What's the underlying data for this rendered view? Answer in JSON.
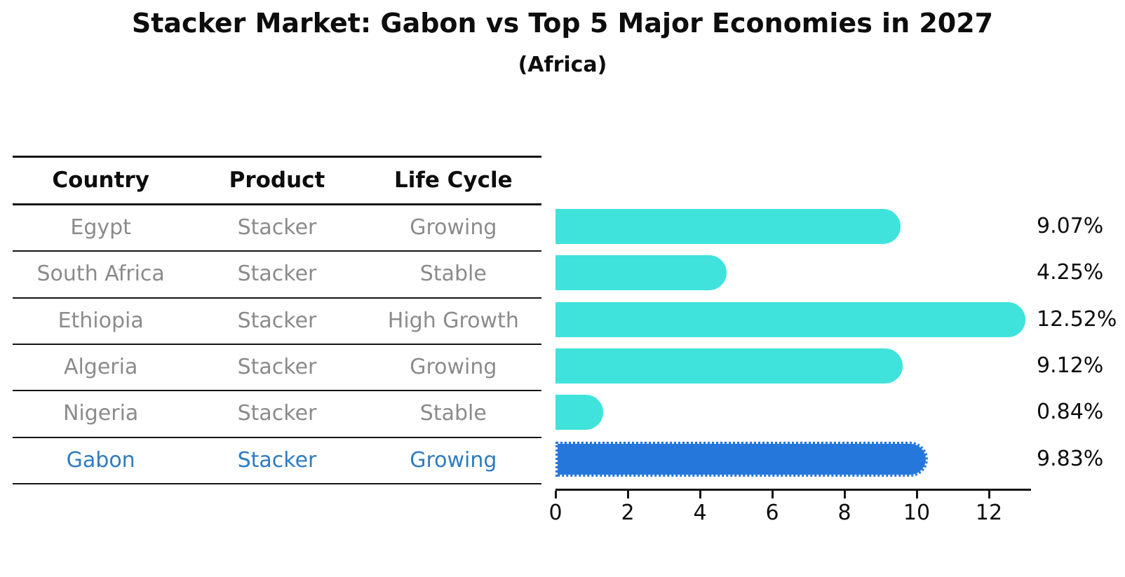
{
  "header": {
    "title": "Stacker Market: Gabon vs Top 5 Major Economies in 2027",
    "subtitle": "(Africa)"
  },
  "table": {
    "columns": [
      "Country",
      "Product",
      "Life Cycle"
    ],
    "rows": [
      {
        "country": "Egypt",
        "product": "Stacker",
        "life_cycle": "Growing",
        "highlight": false
      },
      {
        "country": "South Africa",
        "product": "Stacker",
        "life_cycle": "Stable",
        "highlight": false
      },
      {
        "country": "Ethiopia",
        "product": "Stacker",
        "life_cycle": "High Growth",
        "highlight": false
      },
      {
        "country": "Algeria",
        "product": "Stacker",
        "life_cycle": "Growing",
        "highlight": false
      },
      {
        "country": "Nigeria",
        "product": "Stacker",
        "life_cycle": "Stable",
        "highlight": false
      },
      {
        "country": "Gabon",
        "product": "Stacker",
        "life_cycle": "Growing",
        "highlight": true
      }
    ]
  },
  "chart_data": {
    "type": "bar",
    "orientation": "horizontal",
    "title": "Stacker Market: Gabon vs Top 5 Major Economies in 2027",
    "subtitle": "(Africa)",
    "categories": [
      "Egypt",
      "South Africa",
      "Ethiopia",
      "Algeria",
      "Nigeria",
      "Gabon"
    ],
    "values": [
      9.07,
      4.25,
      12.52,
      9.12,
      0.84,
      9.83
    ],
    "value_labels": [
      "9.07%",
      "4.25%",
      "12.52%",
      "9.12%",
      "0.84%",
      "9.83%"
    ],
    "highlight_category": "Gabon",
    "xlabel": "",
    "ylabel": "",
    "xlim": [
      0,
      13.2
    ],
    "x_ticks": [
      0,
      2,
      4,
      6,
      8,
      10,
      12
    ],
    "grid": false,
    "legend": false,
    "colors": {
      "bar_default": "#3fe3dc",
      "bar_highlight": "#2577dc",
      "highlight_text": "#2e7cc1",
      "row_text": "#8b8b8b",
      "header_text": "#0d0d0d",
      "axis": "#141414"
    }
  }
}
